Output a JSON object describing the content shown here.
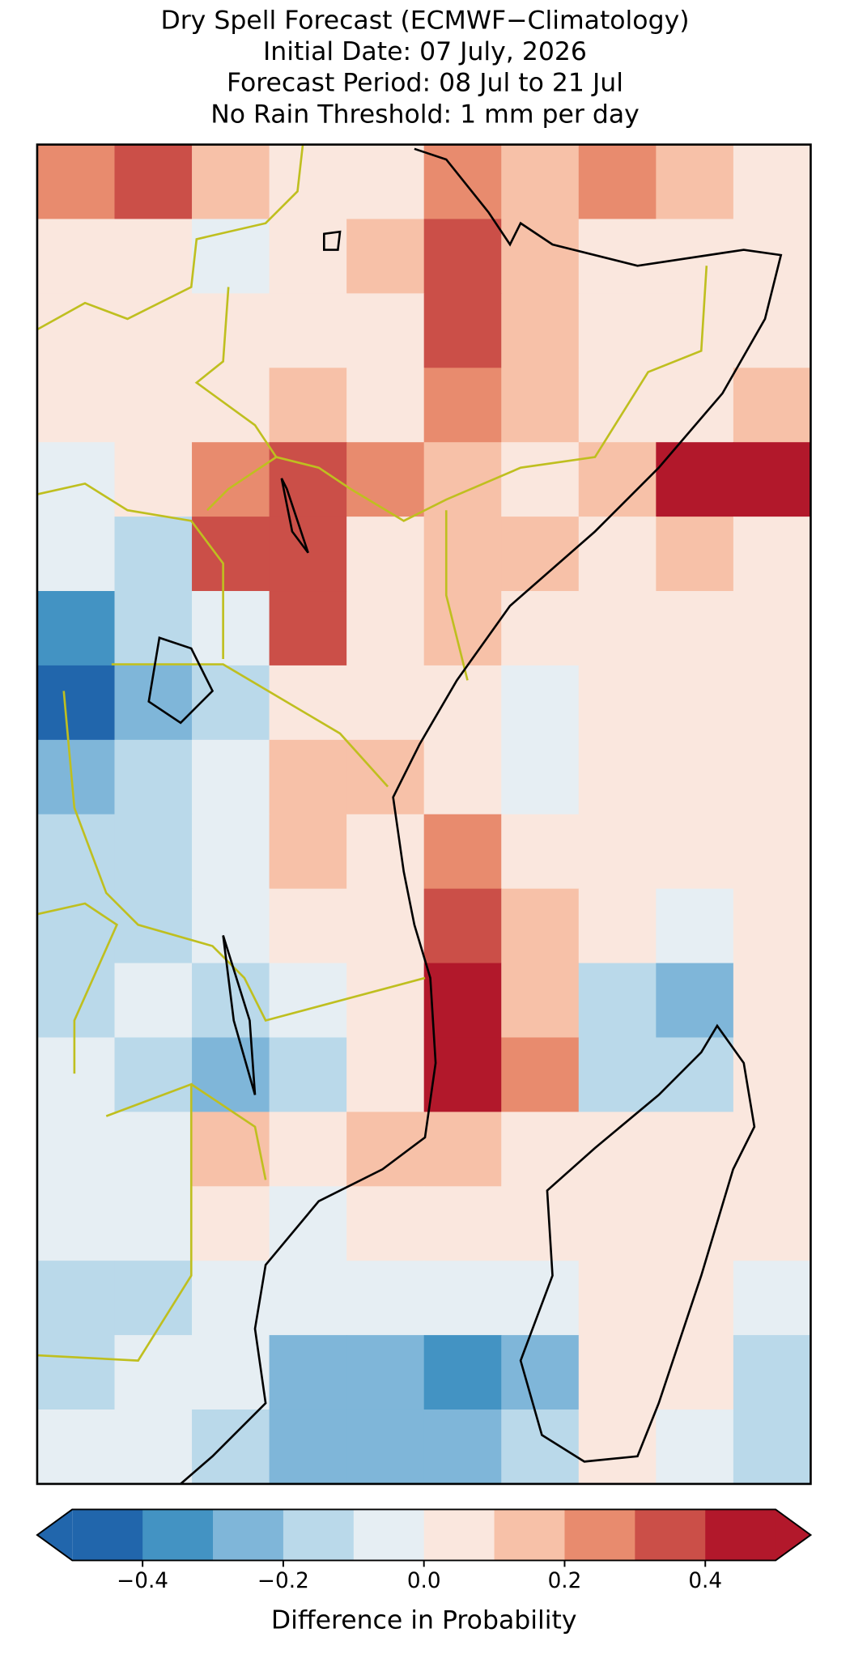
{
  "chart_data": {
    "type": "heatmap",
    "title": [
      "Dry Spell Forecast (ECMWF−Climatology)",
      "Initial Date: 07 July, 2026",
      "Forecast Period: 08 Jul to 21 Jul",
      "No Rain Threshold: 1 mm per day"
    ],
    "values": [
      [
        0.25,
        0.35,
        0.15,
        0.05,
        0.05,
        0.25,
        0.15,
        0.25,
        0.15,
        0.05
      ],
      [
        0.05,
        0.05,
        -0.05,
        0.05,
        0.15,
        0.35,
        0.15,
        0.05,
        0.05,
        0.05
      ],
      [
        0.05,
        0.05,
        0.05,
        0.05,
        0.05,
        0.35,
        0.15,
        0.05,
        0.05,
        0.05
      ],
      [
        0.05,
        0.05,
        0.05,
        0.15,
        0.05,
        0.25,
        0.15,
        0.05,
        0.05,
        0.15
      ],
      [
        -0.05,
        0.05,
        0.25,
        0.35,
        0.25,
        0.15,
        0.05,
        0.15,
        0.45,
        0.45
      ],
      [
        -0.05,
        -0.15,
        0.35,
        0.35,
        0.05,
        0.15,
        0.15,
        0.05,
        0.15,
        0.05
      ],
      [
        -0.35,
        -0.15,
        -0.05,
        0.35,
        0.05,
        0.15,
        0.05,
        0.05,
        0.05,
        0.05
      ],
      [
        -0.45,
        -0.25,
        -0.15,
        0.05,
        0.05,
        0.05,
        -0.05,
        0.05,
        0.05,
        0.05
      ],
      [
        -0.25,
        -0.15,
        -0.05,
        0.15,
        0.15,
        0.05,
        -0.05,
        0.05,
        0.05,
        0.05
      ],
      [
        -0.15,
        -0.15,
        -0.05,
        0.15,
        0.05,
        0.25,
        0.05,
        0.05,
        0.05,
        0.05
      ],
      [
        -0.15,
        -0.15,
        -0.05,
        0.05,
        0.05,
        0.35,
        0.15,
        0.05,
        -0.05,
        0.05
      ],
      [
        -0.15,
        -0.05,
        -0.15,
        -0.05,
        0.05,
        0.45,
        0.15,
        -0.15,
        -0.25,
        0.05
      ],
      [
        -0.05,
        -0.15,
        -0.25,
        -0.15,
        0.05,
        0.45,
        0.25,
        -0.15,
        -0.15,
        0.05
      ],
      [
        -0.05,
        -0.05,
        0.15,
        0.05,
        0.15,
        0.15,
        0.05,
        0.05,
        0.05,
        0.05
      ],
      [
        -0.05,
        -0.05,
        0.05,
        -0.05,
        0.05,
        0.05,
        0.05,
        0.05,
        0.05,
        0.05
      ],
      [
        -0.15,
        -0.15,
        -0.05,
        -0.05,
        -0.05,
        -0.05,
        -0.05,
        0.05,
        0.05,
        -0.05
      ],
      [
        -0.15,
        -0.05,
        -0.05,
        -0.25,
        -0.25,
        -0.35,
        -0.25,
        0.05,
        0.05,
        -0.15
      ],
      [
        -0.05,
        -0.05,
        -0.15,
        -0.25,
        -0.25,
        -0.25,
        -0.15,
        0.05,
        -0.05,
        -0.15
      ]
    ],
    "colorbar": {
      "label": "Difference in Probability",
      "levels": [
        -0.5,
        -0.4,
        -0.3,
        -0.2,
        -0.1,
        0,
        0.1,
        0.2,
        0.3,
        0.4,
        0.5
      ],
      "colors": [
        "#2166ac",
        "#4393c3",
        "#7fb6d9",
        "#bad9ea",
        "#e6eef3",
        "#fae7de",
        "#f7c1a8",
        "#e88b6e",
        "#cb4f48",
        "#b2182b"
      ],
      "extend": "both",
      "ticks": [
        {
          "value": -0.4,
          "label": "−0.4"
        },
        {
          "value": -0.2,
          "label": "−0.2"
        },
        {
          "value": 0,
          "label": "0.0"
        },
        0.2,
        0.4
      ]
    }
  }
}
